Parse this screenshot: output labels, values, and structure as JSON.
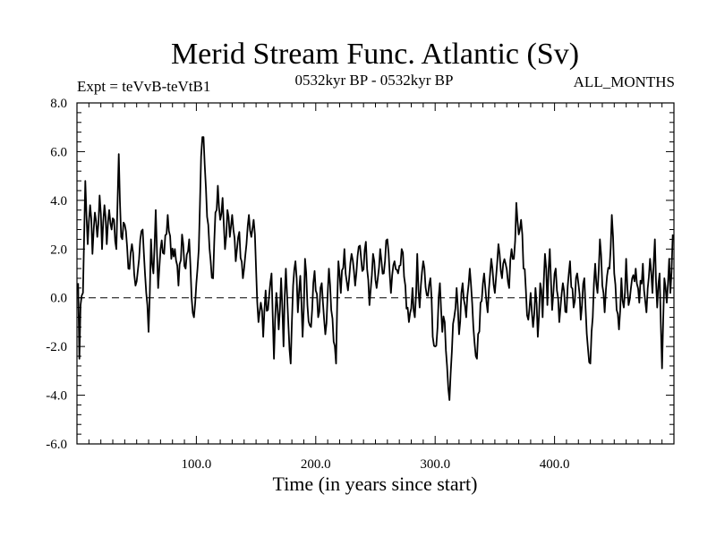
{
  "chart_data": {
    "type": "line",
    "title": "Merid Stream Func. Atlantic (Sv)",
    "left_label": "Expt = teVvB-teVtB1",
    "center_label": "0532kyr BP - 0532kyr BP",
    "right_label": "ALL_MONTHS",
    "xlabel": "Time (in years since start)",
    "ylabel": "",
    "xlim": [
      0,
      500
    ],
    "ylim": [
      -6,
      8
    ],
    "x_ticks": [
      "100.0",
      "200.0",
      "300.0",
      "400.0"
    ],
    "x_tick_values": [
      100,
      200,
      300,
      400
    ],
    "y_ticks": [
      "8.0",
      "6.0",
      "4.0",
      "2.0",
      "0.0",
      "-2.0",
      "-4.0",
      "-6.0"
    ],
    "y_tick_values": [
      8,
      6,
      4,
      2,
      0,
      -2,
      -4,
      -6
    ],
    "zero_line": 0,
    "series": [
      {
        "name": "teVvB-teVtB1",
        "color": "#000000",
        "anchors": [
          [
            1,
            0.6
          ],
          [
            2,
            -2.5
          ],
          [
            3,
            -0.3
          ],
          [
            5,
            0.2
          ],
          [
            6,
            2.5
          ],
          [
            7,
            4.8
          ],
          [
            9,
            2.2
          ],
          [
            11,
            3.8
          ],
          [
            13,
            1.8
          ],
          [
            15,
            3.5
          ],
          [
            17,
            2.5
          ],
          [
            19,
            4.2
          ],
          [
            21,
            2.0
          ],
          [
            23,
            3.8
          ],
          [
            25,
            2.2
          ],
          [
            27,
            3.6
          ],
          [
            29,
            2.8
          ],
          [
            31,
            3.2
          ],
          [
            33,
            2.0
          ],
          [
            35,
            5.9
          ],
          [
            37,
            2.5
          ],
          [
            40,
            3.0
          ],
          [
            43,
            1.2
          ],
          [
            46,
            2.2
          ],
          [
            49,
            0.5
          ],
          [
            52,
            1.6
          ],
          [
            55,
            2.8
          ],
          [
            58,
            0.2
          ],
          [
            60,
            -1.4
          ],
          [
            62,
            2.4
          ],
          [
            64,
            1.0
          ],
          [
            66,
            3.6
          ],
          [
            68,
            0.4
          ],
          [
            70,
            2.0
          ],
          [
            73,
            1.8
          ],
          [
            76,
            3.4
          ],
          [
            79,
            1.6
          ],
          [
            82,
            2.0
          ],
          [
            85,
            0.5
          ],
          [
            88,
            2.6
          ],
          [
            91,
            1.2
          ],
          [
            94,
            2.4
          ],
          [
            96,
            0.0
          ],
          [
            98,
            -0.8
          ],
          [
            100,
            0.6
          ],
          [
            102,
            2.0
          ],
          [
            104,
            5.8
          ],
          [
            106,
            6.6
          ],
          [
            108,
            4.5
          ],
          [
            110,
            3.0
          ],
          [
            112,
            1.5
          ],
          [
            114,
            0.8
          ],
          [
            116,
            3.5
          ],
          [
            118,
            4.6
          ],
          [
            120,
            3.2
          ],
          [
            122,
            4.1
          ],
          [
            124,
            2.0
          ],
          [
            126,
            3.6
          ],
          [
            128,
            2.5
          ],
          [
            130,
            3.4
          ],
          [
            133,
            1.5
          ],
          [
            136,
            2.7
          ],
          [
            139,
            0.8
          ],
          [
            142,
            2.2
          ],
          [
            144,
            3.4
          ],
          [
            146,
            2.5
          ],
          [
            148,
            3.2
          ],
          [
            150,
            1.2
          ],
          [
            152,
            -1.0
          ],
          [
            154,
            -0.2
          ],
          [
            156,
            -1.6
          ],
          [
            158,
            0.3
          ],
          [
            160,
            -0.5
          ],
          [
            163,
            1.0
          ],
          [
            165,
            -2.5
          ],
          [
            167,
            0.2
          ],
          [
            169,
            -1.3
          ],
          [
            171,
            0.8
          ],
          [
            173,
            -2.0
          ],
          [
            175,
            1.2
          ],
          [
            177,
            -1.0
          ],
          [
            179,
            -2.7
          ],
          [
            181,
            0.5
          ],
          [
            183,
            1.5
          ],
          [
            185,
            -0.6
          ],
          [
            187,
            0.9
          ],
          [
            189,
            -1.6
          ],
          [
            191,
            1.6
          ],
          [
            193,
            -0.3
          ],
          [
            196,
            -1.2
          ],
          [
            199,
            1.1
          ],
          [
            202,
            -0.8
          ],
          [
            205,
            0.6
          ],
          [
            208,
            -1.5
          ],
          [
            211,
            1.2
          ],
          [
            213,
            -0.5
          ],
          [
            215,
            -1.8
          ],
          [
            217,
            -2.7
          ],
          [
            219,
            1.5
          ],
          [
            221,
            0.2
          ],
          [
            224,
            2.0
          ],
          [
            227,
            0.3
          ],
          [
            230,
            1.8
          ],
          [
            233,
            0.5
          ],
          [
            236,
            2.1
          ],
          [
            239,
            1.1
          ],
          [
            242,
            2.3
          ],
          [
            245,
            -0.3
          ],
          [
            248,
            1.8
          ],
          [
            251,
            0.4
          ],
          [
            254,
            2.0
          ],
          [
            257,
            1.0
          ],
          [
            260,
            2.4
          ],
          [
            263,
            0.2
          ],
          [
            266,
            1.5
          ],
          [
            269,
            1.0
          ],
          [
            272,
            2.0
          ],
          [
            275,
            0.5
          ],
          [
            278,
            -1.0
          ],
          [
            281,
            0.4
          ],
          [
            283,
            -0.8
          ],
          [
            285,
            1.8
          ],
          [
            287,
            -0.4
          ],
          [
            290,
            1.5
          ],
          [
            293,
            0.1
          ],
          [
            296,
            0.8
          ],
          [
            298,
            -1.6
          ],
          [
            300,
            -2.0
          ],
          [
            302,
            -1.2
          ],
          [
            304,
            0.6
          ],
          [
            306,
            -1.4
          ],
          [
            308,
            -1.0
          ],
          [
            310,
            -2.8
          ],
          [
            312,
            -4.2
          ],
          [
            314,
            -2.2
          ],
          [
            316,
            -0.8
          ],
          [
            318,
            0.4
          ],
          [
            320,
            -1.5
          ],
          [
            323,
            0.6
          ],
          [
            326,
            -0.8
          ],
          [
            329,
            1.2
          ],
          [
            332,
            -1.2
          ],
          [
            335,
            -2.5
          ],
          [
            338,
            -0.2
          ],
          [
            341,
            1.0
          ],
          [
            344,
            -0.6
          ],
          [
            347,
            1.6
          ],
          [
            350,
            0.2
          ],
          [
            353,
            2.2
          ],
          [
            356,
            0.8
          ],
          [
            359,
            1.4
          ],
          [
            362,
            0.4
          ],
          [
            364,
            2.0
          ],
          [
            366,
            1.6
          ],
          [
            368,
            3.9
          ],
          [
            370,
            2.6
          ],
          [
            372,
            3.2
          ],
          [
            374,
            1.2
          ],
          [
            376,
            0.3
          ],
          [
            378,
            -0.9
          ],
          [
            380,
            0.2
          ],
          [
            382,
            -1.2
          ],
          [
            384,
            0.4
          ],
          [
            386,
            -1.6
          ],
          [
            388,
            0.6
          ],
          [
            390,
            -0.8
          ],
          [
            392,
            1.8
          ],
          [
            394,
            -0.3
          ],
          [
            396,
            2.0
          ],
          [
            398,
            -0.5
          ],
          [
            401,
            1.2
          ],
          [
            404,
            -1.0
          ],
          [
            407,
            0.6
          ],
          [
            410,
            -0.6
          ],
          [
            413,
            1.5
          ],
          [
            416,
            -0.4
          ],
          [
            419,
            1.0
          ],
          [
            422,
            -0.9
          ],
          [
            425,
            0.8
          ],
          [
            428,
            -2.1
          ],
          [
            430,
            -2.7
          ],
          [
            432,
            -0.8
          ],
          [
            434,
            1.4
          ],
          [
            436,
            0.2
          ],
          [
            438,
            2.4
          ],
          [
            440,
            0.5
          ],
          [
            442,
            -0.6
          ],
          [
            444,
            0.9
          ],
          [
            446,
            1.2
          ],
          [
            448,
            3.4
          ],
          [
            450,
            1.0
          ],
          [
            452,
            -0.5
          ],
          [
            454,
            -1.3
          ],
          [
            456,
            0.8
          ],
          [
            458,
            -0.4
          ],
          [
            460,
            1.6
          ],
          [
            462,
            -0.3
          ],
          [
            465,
            0.8
          ],
          [
            468,
            1.2
          ],
          [
            471,
            -0.2
          ],
          [
            474,
            1.4
          ],
          [
            477,
            -0.6
          ],
          [
            480,
            1.6
          ],
          [
            482,
            0.2
          ],
          [
            484,
            2.4
          ],
          [
            486,
            -0.4
          ],
          [
            488,
            1.0
          ],
          [
            490,
            -2.9
          ],
          [
            492,
            0.8
          ],
          [
            494,
            -0.2
          ],
          [
            496,
            1.6
          ],
          [
            497,
            0.2
          ],
          [
            499,
            2.6
          ]
        ]
      }
    ],
    "grid": false,
    "legend": "none"
  }
}
